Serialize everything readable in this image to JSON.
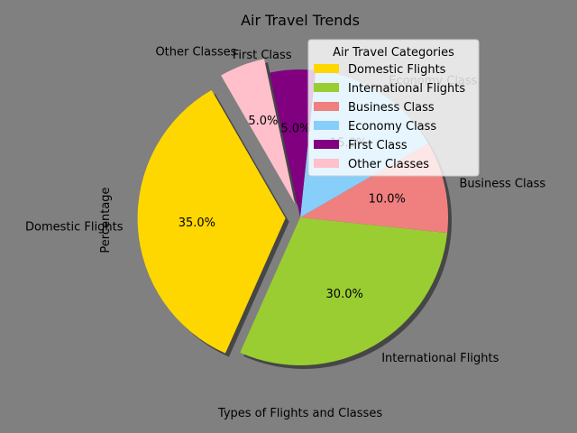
{
  "chart_data": {
    "type": "pie",
    "title": "Air Travel Trends",
    "xlabel": "Types of Flights and Classes",
    "ylabel": "Percentage",
    "categories": [
      "Domestic Flights",
      "International Flights",
      "Business Class",
      "Economy Class",
      "First Class",
      "Other Classes"
    ],
    "values": [
      35,
      30,
      10,
      15,
      5,
      5
    ],
    "value_labels": [
      "35.0%",
      "30.0%",
      "10.0%",
      "15.0%",
      "5.0%",
      "5.0%"
    ],
    "colors": [
      "#ffd700",
      "#9acd32",
      "#f08080",
      "#87cefa",
      "#800080",
      "#ffc0cb"
    ],
    "exploded": [
      true,
      false,
      false,
      false,
      false,
      true
    ],
    "start_angle_deg": 120,
    "shadow": true,
    "legend": {
      "title": "Air Travel Categories",
      "placement": "upper-right"
    }
  }
}
